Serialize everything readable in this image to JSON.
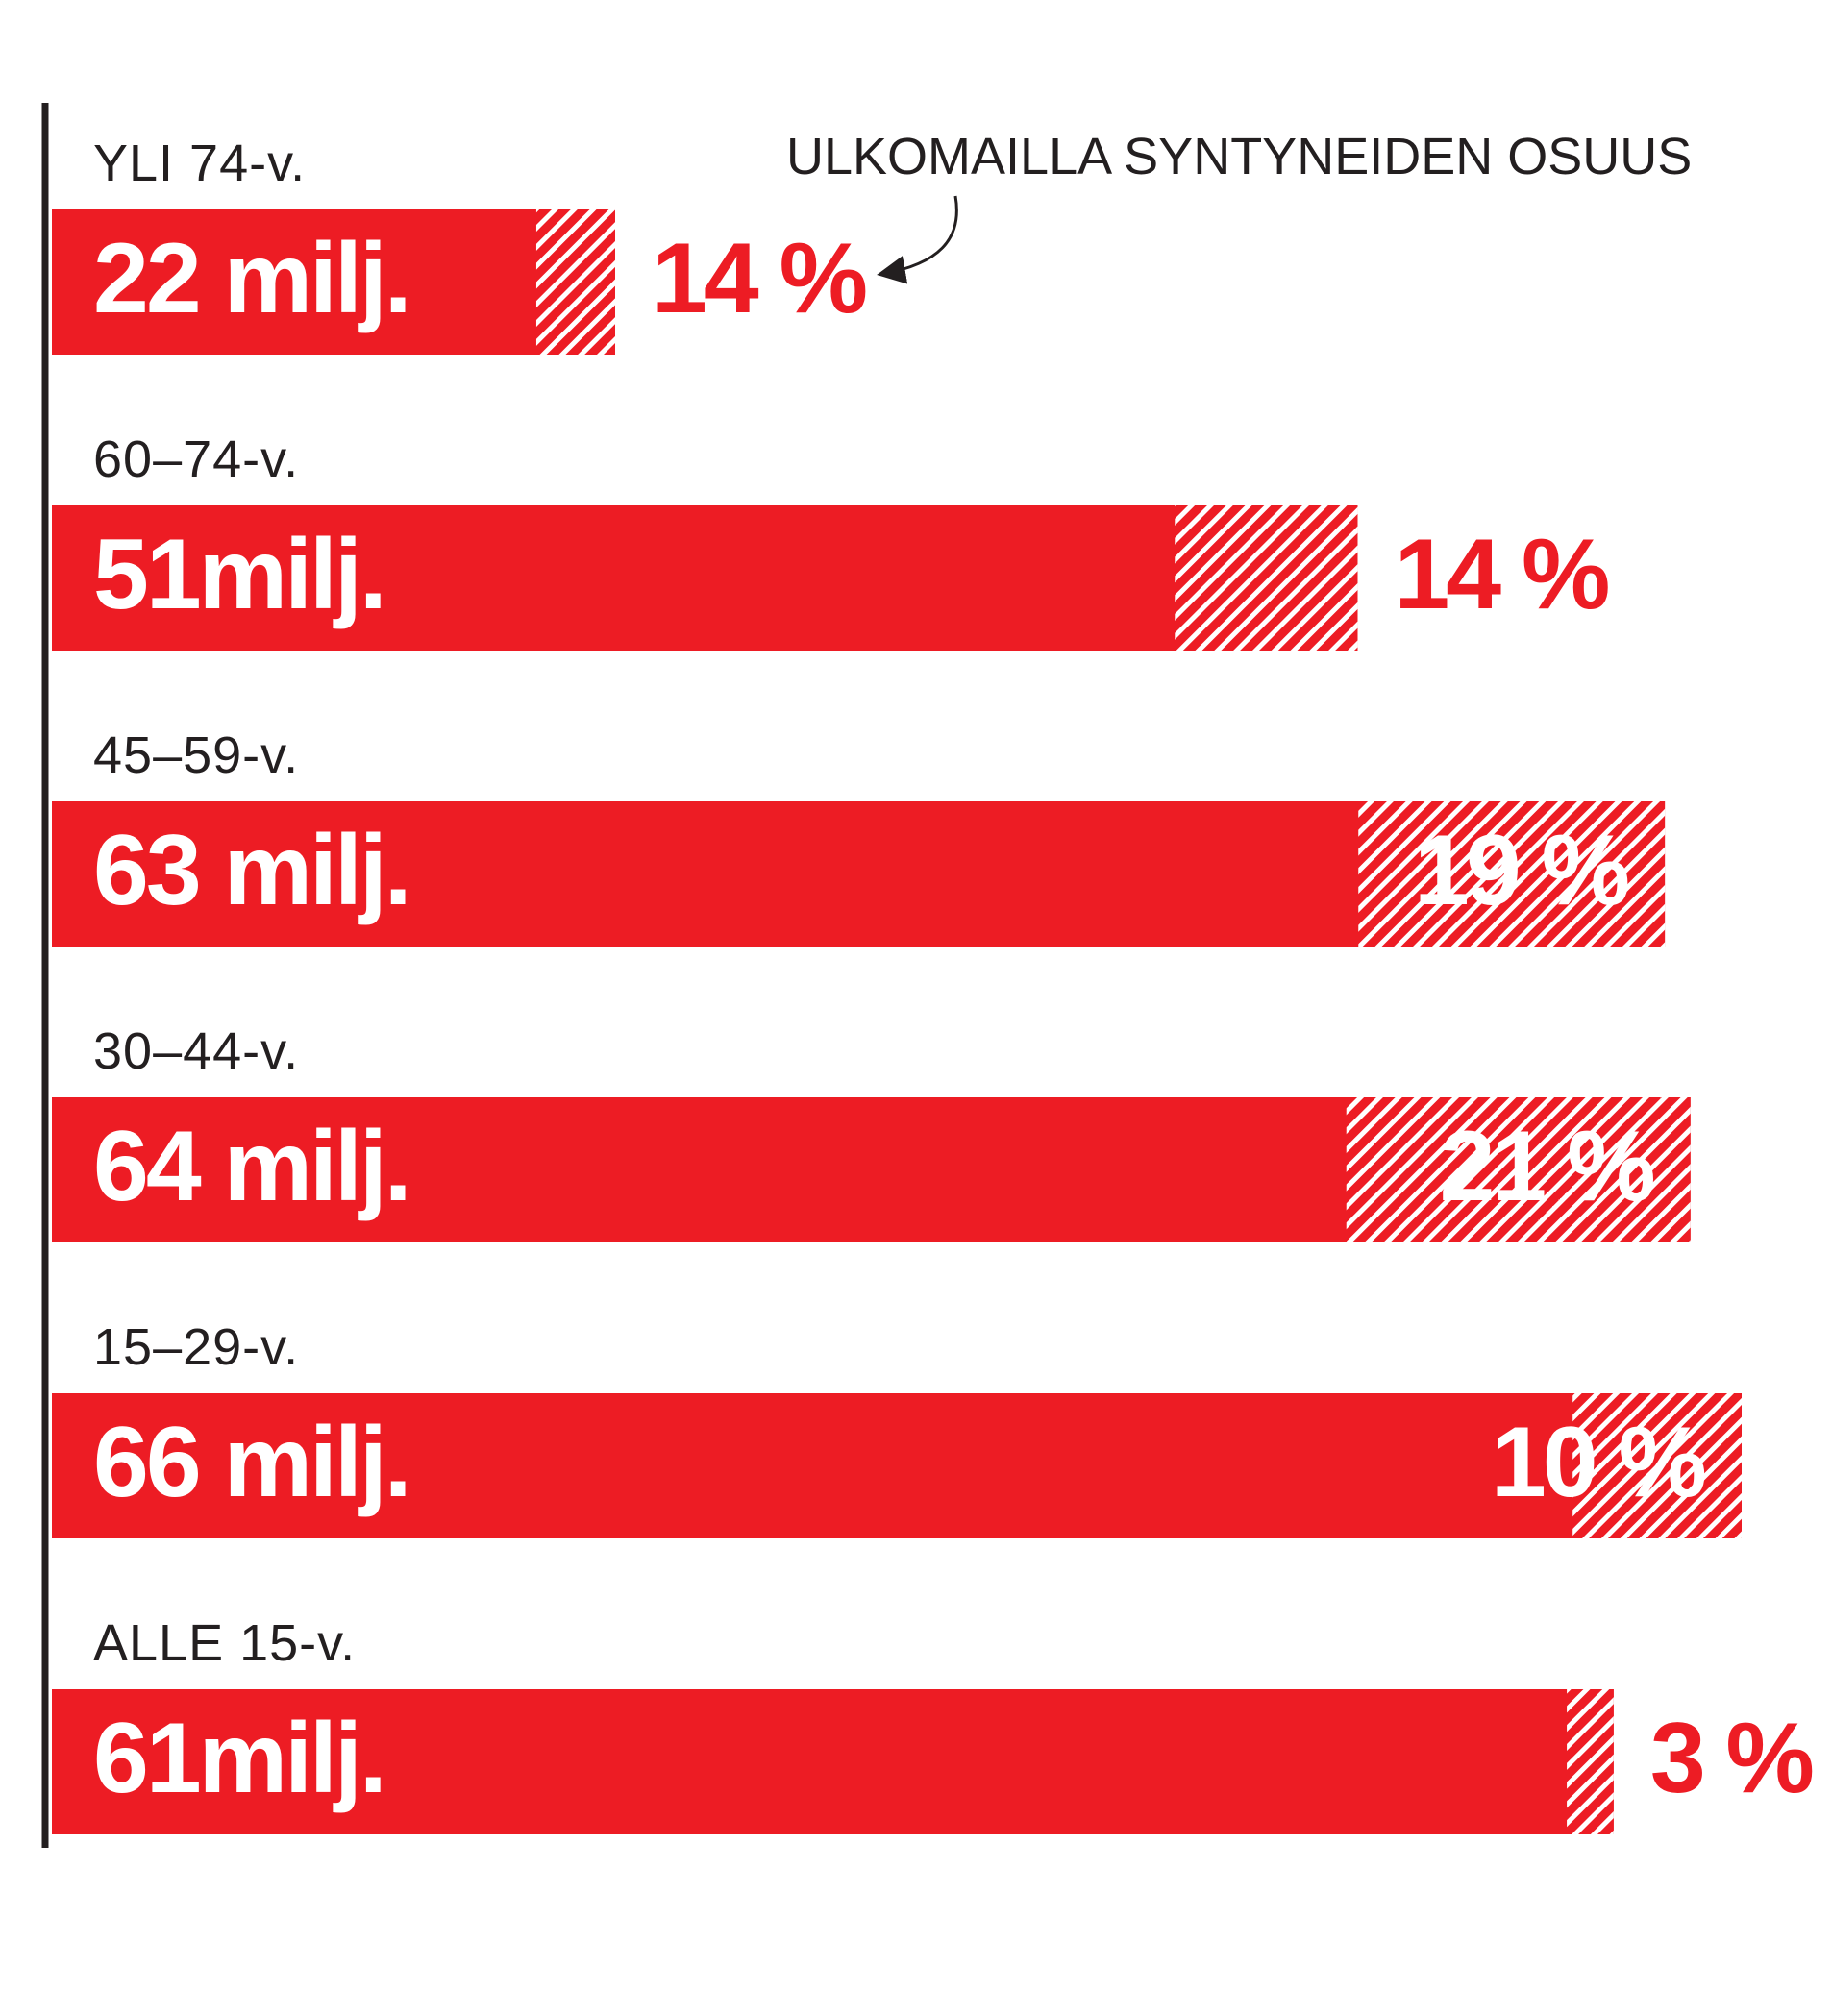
{
  "chart_data": {
    "type": "bar",
    "orientation": "horizontal",
    "annotation": "ULKOMAILLA SYNTYNEIDEN OSUUS",
    "categories": [
      "YLI 74-v.",
      "60–74-v.",
      "45–59-v.",
      "30–44-v.",
      "15–29-v.",
      "ALLE 15-v."
    ],
    "values": [
      22,
      51,
      63,
      64,
      66,
      61
    ],
    "value_labels": [
      "22 milj.",
      "51milj.",
      "63 milj.",
      "64 milj.",
      "66 milj.",
      "61milj."
    ],
    "share_values": [
      14,
      14,
      19,
      21,
      10,
      3
    ],
    "share_labels": [
      "14 %",
      "14 %",
      "19 %",
      "21 %",
      "10 %",
      "3 %"
    ],
    "color": "#ed1c24"
  }
}
